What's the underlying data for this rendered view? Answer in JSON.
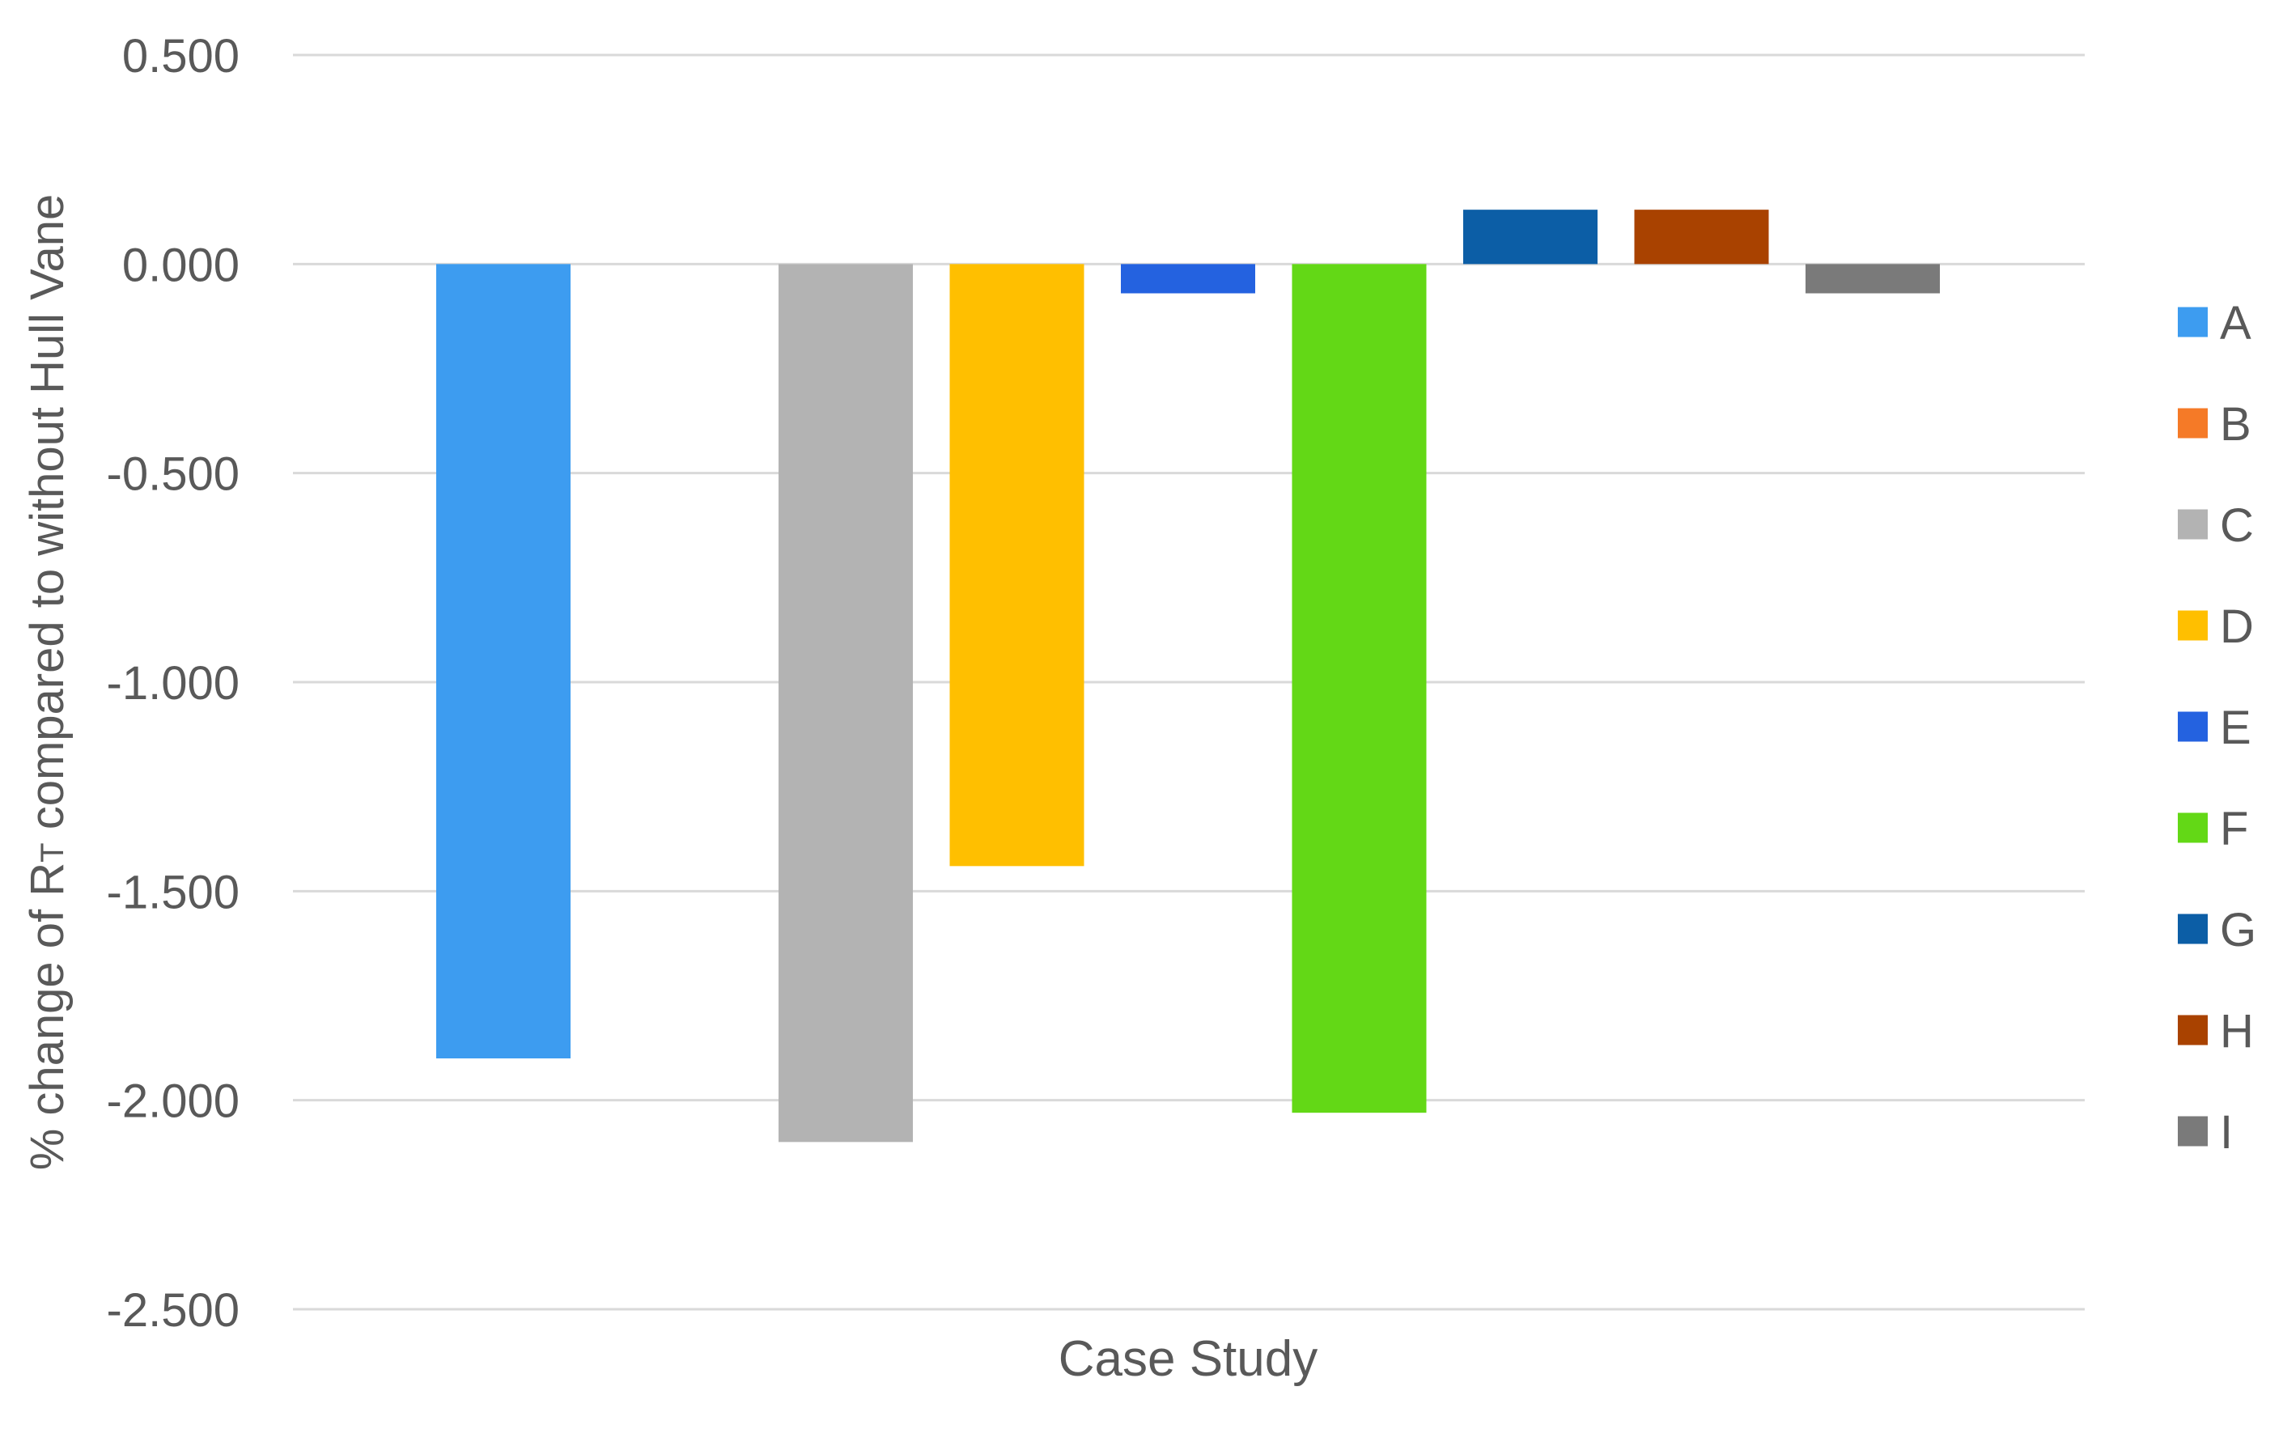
{
  "chart_data": {
    "type": "bar",
    "title": "",
    "xlabel": "Case Study",
    "ylabel": {
      "prefix": "% change of R",
      "subscript": "T",
      "suffix": " compared to without Hull Vane"
    },
    "ylim": [
      -2.5,
      0.5
    ],
    "yticks": [
      0.5,
      0,
      -0.5,
      -1,
      -1.5,
      -2,
      -2.5
    ],
    "ytick_labels": [
      "0.500",
      "0.000",
      "-0.500",
      "-1.000",
      "-1.500",
      "-2.000",
      "-2.500"
    ],
    "grid": true,
    "legend_position": "right",
    "series": [
      {
        "name": "A",
        "values": [
          -1.9
        ],
        "color": "#3d9cf0"
      },
      {
        "name": "B",
        "values": [
          0
        ],
        "color": "#f57a27"
      },
      {
        "name": "C",
        "values": [
          -2.1
        ],
        "color": "#b3b3b3"
      },
      {
        "name": "D",
        "values": [
          -1.44
        ],
        "color": "#ffbf00"
      },
      {
        "name": "E",
        "values": [
          -0.07
        ],
        "color": "#2462e0"
      },
      {
        "name": "F",
        "values": [
          -2.03
        ],
        "color": "#63d816"
      },
      {
        "name": "G",
        "values": [
          0.13
        ],
        "color": "#0c5ea6"
      },
      {
        "name": "H",
        "values": [
          0.13
        ],
        "color": "#a94200"
      },
      {
        "name": "I",
        "values": [
          -0.07
        ],
        "color": "#7a7a7a"
      }
    ]
  }
}
